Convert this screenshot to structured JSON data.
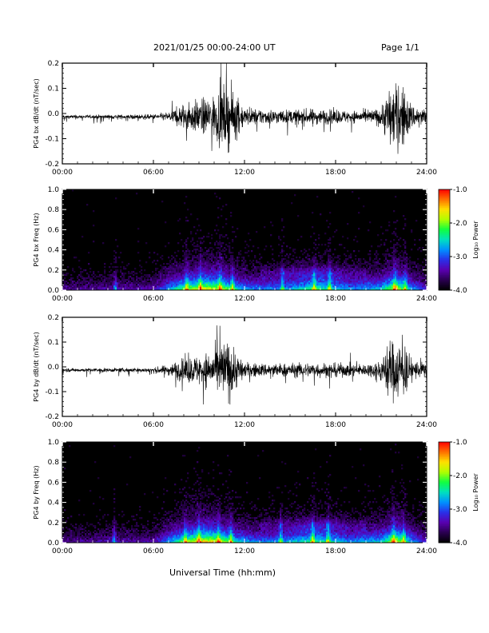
{
  "header": {
    "date_range": "2021/01/25  00:00-24:00 UT",
    "page": "Page 1/1"
  },
  "footer": {
    "xlabel": "Universal Time (hh:mm)"
  },
  "colorbar": {
    "label": "Log₁₀ Power",
    "ticks": [
      "-1.0",
      "-2.0",
      "-3.0",
      "-4.0"
    ],
    "range": [
      -4.0,
      -1.0
    ],
    "colormap": [
      "#000000",
      "#2a0050",
      "#5a00b0",
      "#2a30e8",
      "#0090ff",
      "#00e0c0",
      "#10ff40",
      "#b0ff00",
      "#ffe000",
      "#ff7000",
      "#ff0000"
    ]
  },
  "chart_data": [
    {
      "type": "line",
      "ylabel": "PG4 bx dB/dt (nT/sec)",
      "xticks": [
        "00:00",
        "06:00",
        "12:00",
        "18:00",
        "24:00"
      ],
      "yticks": [
        "0.2",
        "0.1",
        "0.0",
        "-0.1",
        "-0.2"
      ],
      "xlim": [
        0,
        24
      ],
      "ylim": [
        -0.2,
        0.2
      ],
      "envelope_hours": [
        0,
        2,
        4,
        6,
        7,
        7.5,
        8,
        9,
        10,
        10.5,
        11,
        11.5,
        12,
        13,
        14,
        15,
        16,
        17,
        18,
        19,
        20,
        21,
        21.5,
        22,
        22.5,
        23,
        24
      ],
      "envelope_amplitude": [
        0.012,
        0.012,
        0.014,
        0.016,
        0.03,
        0.06,
        0.09,
        0.11,
        0.14,
        0.2,
        0.2,
        0.14,
        0.06,
        0.05,
        0.05,
        0.045,
        0.05,
        0.05,
        0.045,
        0.04,
        0.04,
        0.06,
        0.2,
        0.2,
        0.2,
        0.08,
        0.05
      ]
    },
    {
      "type": "heatmap",
      "ylabel": "PG4 bx Freq (Hz)",
      "xticks": [
        "00:00",
        "06:00",
        "12:00",
        "18:00",
        "24:00"
      ],
      "yticks": [
        "1.0",
        "0.8",
        "0.6",
        "0.4",
        "0.2",
        "0.0"
      ],
      "xlim": [
        0,
        24
      ],
      "ylim": [
        0.0,
        1.0
      ],
      "zlim": [
        -4.0,
        -1.0
      ],
      "activity_hours": [
        0,
        3,
        6,
        7.5,
        8.5,
        9.5,
        10.5,
        11.5,
        12.5,
        14,
        15.5,
        16.5,
        17.5,
        19,
        21,
        22,
        23,
        24
      ],
      "activity_level": [
        0.2,
        0.25,
        0.25,
        0.6,
        0.75,
        0.85,
        0.8,
        0.55,
        0.45,
        0.45,
        0.55,
        0.65,
        0.6,
        0.45,
        0.55,
        0.85,
        0.5,
        0.3
      ],
      "bright_columns_hours": [
        3.5,
        8.2,
        9.1,
        10.4,
        11.2,
        14.5,
        16.6,
        17.6,
        21.9,
        22.6
      ]
    },
    {
      "type": "line",
      "ylabel": "PG4 by dB/dt (nT/sec)",
      "xticks": [
        "00:00",
        "06:00",
        "12:00",
        "18:00",
        "24:00"
      ],
      "yticks": [
        "0.2",
        "0.1",
        "0.0",
        "-0.1",
        "-0.2"
      ],
      "xlim": [
        0,
        24
      ],
      "ylim": [
        -0.2,
        0.2
      ],
      "envelope_hours": [
        0,
        2,
        4,
        6,
        7,
        7.5,
        8,
        9,
        10,
        10.5,
        11,
        11.5,
        12,
        13,
        14,
        15,
        16,
        17,
        18,
        19,
        20,
        21,
        21.5,
        22,
        22.5,
        23,
        24
      ],
      "envelope_amplitude": [
        0.012,
        0.012,
        0.014,
        0.016,
        0.035,
        0.06,
        0.08,
        0.1,
        0.13,
        0.2,
        0.2,
        0.12,
        0.05,
        0.045,
        0.045,
        0.045,
        0.05,
        0.05,
        0.045,
        0.045,
        0.04,
        0.07,
        0.2,
        0.2,
        0.2,
        0.07,
        0.05
      ]
    },
    {
      "type": "heatmap",
      "ylabel": "PG4 by Freq (Hz)",
      "xticks": [
        "00:00",
        "06:00",
        "12:00",
        "18:00",
        "24:00"
      ],
      "yticks": [
        "1.0",
        "0.8",
        "0.6",
        "0.4",
        "0.2",
        "0.0"
      ],
      "xlim": [
        0,
        24
      ],
      "ylim": [
        0.0,
        1.0
      ],
      "zlim": [
        -4.0,
        -1.0
      ],
      "activity_hours": [
        0,
        3,
        6,
        7.5,
        8.5,
        9.5,
        10.5,
        11.5,
        12.5,
        14,
        15.5,
        16.5,
        17.5,
        19,
        21,
        22,
        23,
        24
      ],
      "activity_level": [
        0.2,
        0.25,
        0.25,
        0.6,
        0.8,
        0.9,
        0.8,
        0.55,
        0.45,
        0.45,
        0.55,
        0.65,
        0.6,
        0.45,
        0.55,
        0.85,
        0.5,
        0.3
      ],
      "bright_columns_hours": [
        3.4,
        8.1,
        9.0,
        10.3,
        11.1,
        14.4,
        16.5,
        17.5,
        21.8,
        22.5
      ]
    }
  ]
}
